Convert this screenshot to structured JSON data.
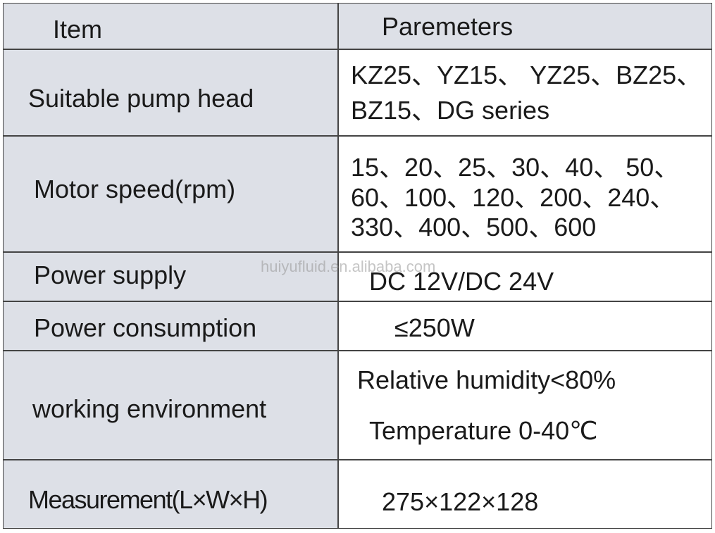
{
  "header": {
    "item": "Item",
    "parameters": "Paremeters"
  },
  "rows": [
    {
      "item": "Suitable pump head",
      "parameters": [
        "KZ25、YZ15、 YZ25、BZ25、",
        "BZ15、DG series"
      ]
    },
    {
      "item": "Motor speed(rpm)",
      "parameters": [
        "15、20、25、30、40、 50、",
        "60、100、120、200、240、",
        "330、400、500、600"
      ]
    },
    {
      "item": "Power supply",
      "parameters": [
        "DC 12V/DC 24V"
      ]
    },
    {
      "item": "Power consumption",
      "parameters": [
        "≤250W"
      ]
    },
    {
      "item": "working environment",
      "parameters": [
        "Relative humidity<80%",
        "Temperature 0-40℃"
      ]
    },
    {
      "item": "Measurement(L×W×H)",
      "parameters": [
        "275×122×128"
      ]
    }
  ],
  "watermark": "huiyufluid.en.alibaba.com"
}
